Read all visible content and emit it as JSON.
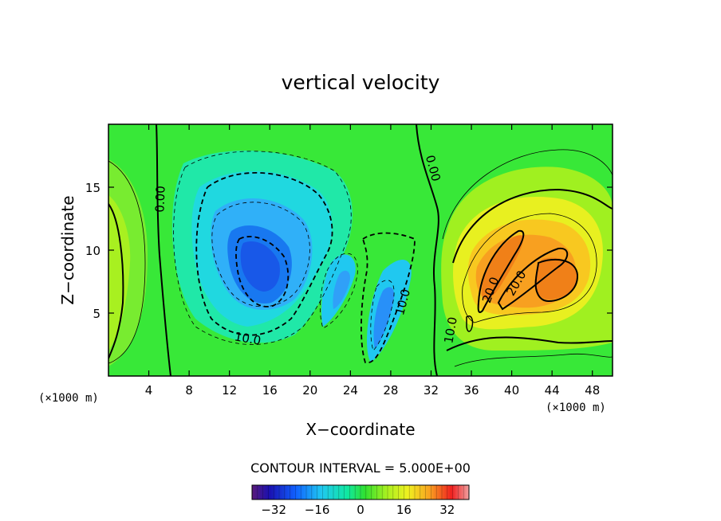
{
  "chart_data": {
    "type": "heatmap",
    "title": "vertical velocity",
    "xlabel": "X−coordinate",
    "ylabel": "Z−coordinate",
    "xunit": "(×1000 m)",
    "yunit": "(×1000 m)",
    "xlim": [
      0,
      50
    ],
    "ylim": [
      0,
      20
    ],
    "xticks": [
      4,
      8,
      12,
      16,
      20,
      24,
      28,
      32,
      36,
      40,
      44,
      48
    ],
    "yticks": [
      5,
      10,
      15
    ],
    "contour_interval_text": "CONTOUR INTERVAL = 5.000E+00",
    "contour_interval": 5,
    "contour_labels": [
      "0.00",
      "0.00",
      "10.0",
      "10.0",
      "10.0",
      "20.0",
      "20.0"
    ],
    "colorbar": {
      "min": -40,
      "max": 40,
      "ticks": [
        "−32",
        "−16",
        "0",
        "16",
        "32"
      ],
      "tick_values": [
        -32,
        -16,
        0,
        16,
        32
      ]
    },
    "field_features": [
      {
        "kind": "downdraft",
        "x": 16,
        "z": 8.5,
        "value": -28
      },
      {
        "kind": "downdraft",
        "x": 26.5,
        "z": 4,
        "value": -20
      },
      {
        "kind": "downdraft",
        "x": 22.5,
        "z": 6.5,
        "value": -16
      },
      {
        "kind": "updraft",
        "x": 39,
        "z": 8,
        "value": 26
      },
      {
        "kind": "updraft",
        "x": 44.5,
        "z": 8,
        "value": 26
      },
      {
        "kind": "updraft",
        "x": 1,
        "z": 9,
        "value": 8
      }
    ]
  }
}
